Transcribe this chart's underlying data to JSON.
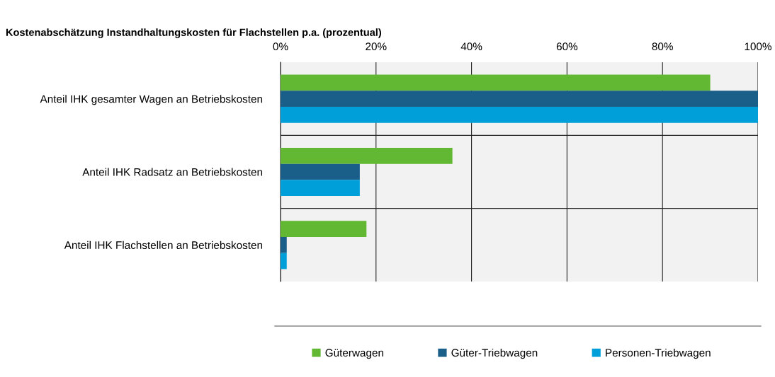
{
  "chart_data": {
    "type": "bar",
    "orientation": "horizontal",
    "title": "Kostenabschätzung Instandhaltungskosten für Flachstellen p.a. (prozentual)",
    "categories": [
      "Anteil IHK gesamter Wagen an Betriebskosten",
      "Anteil IHK Radsatz an Betriebskosten",
      "Anteil IHK Flachstellen an Betriebskosten"
    ],
    "series": [
      {
        "name": "Güterwagen",
        "color": "#62b832",
        "values": [
          90,
          36,
          18
        ]
      },
      {
        "name": "Güter-Triebwagen",
        "color": "#1a5e8a",
        "values": [
          100,
          16.6,
          1.3
        ]
      },
      {
        "name": "Personen-Triebwagen",
        "color": "#009fda",
        "values": [
          100,
          16.6,
          1.3
        ]
      }
    ],
    "xlim": [
      0,
      100
    ],
    "xticks": [
      {
        "value": 0,
        "label": "0%"
      },
      {
        "value": 20,
        "label": "20%"
      },
      {
        "value": 40,
        "label": "40%"
      },
      {
        "value": 60,
        "label": "60%"
      },
      {
        "value": 80,
        "label": "80%"
      },
      {
        "value": 100,
        "label": "100%"
      }
    ],
    "grid": true,
    "legend": "bottom"
  }
}
